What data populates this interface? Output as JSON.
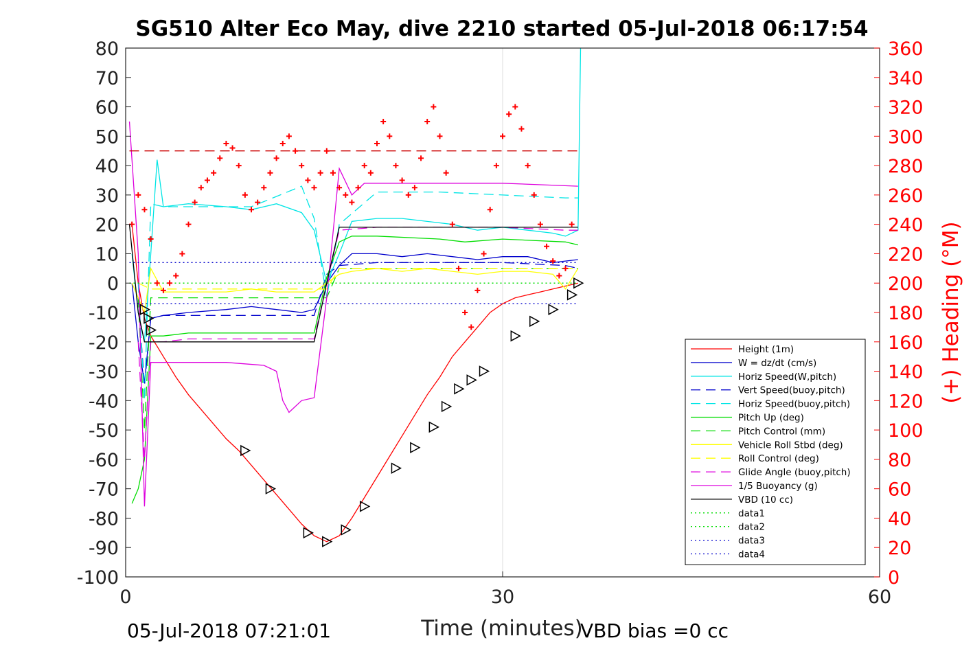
{
  "chart_data": {
    "type": "line",
    "title": "SG510 Alter Eco May, dive 2210 started 05-Jul-2018 06:17:54",
    "xlabel": "Time (minutes)",
    "ylabel": "",
    "y2label": "(+) Heading (°M)",
    "xlim": [
      0,
      60
    ],
    "ylim": [
      -100,
      80
    ],
    "y2lim": [
      0,
      360
    ],
    "xticks": [
      "0",
      "30",
      "60"
    ],
    "yticks": [
      "80",
      "70",
      "60",
      "50",
      "40",
      "30",
      "20",
      "10",
      "0",
      "-10",
      "-20",
      "-30",
      "-40",
      "-50",
      "-60",
      "-70",
      "-80",
      "-90",
      "-100"
    ],
    "y2ticks": [
      "360",
      "340",
      "320",
      "300",
      "280",
      "260",
      "240",
      "220",
      "200",
      "180",
      "160",
      "140",
      "120",
      "100",
      "80",
      "60",
      "40",
      "20",
      "0"
    ],
    "grid": "x-only at 30",
    "legend_position": "bottom-right",
    "footer_left": "05-Jul-2018 07:21:01",
    "footer_right": "VBD bias =0 cc",
    "legend": [
      {
        "label": "Height (1m)",
        "color": "#ff0000",
        "style": "solid"
      },
      {
        "label": "W = dz/dt (cm/s)",
        "color": "#0000cc",
        "style": "solid"
      },
      {
        "label": "Horiz Speed(W,pitch)",
        "color": "#00e5e5",
        "style": "solid"
      },
      {
        "label": "Vert Speed(buoy,pitch)",
        "color": "#0000cc",
        "style": "dashed"
      },
      {
        "label": "Horiz Speed(buoy,pitch)",
        "color": "#00e5e5",
        "style": "dashed"
      },
      {
        "label": "Pitch Up (deg)",
        "color": "#00dd00",
        "style": "solid"
      },
      {
        "label": "Pitch Control (mm)",
        "color": "#00dd00",
        "style": "dashed"
      },
      {
        "label": "Vehicle Roll Stbd (deg)",
        "color": "#ffff00",
        "style": "solid"
      },
      {
        "label": "Roll Control (deg)",
        "color": "#ffff00",
        "style": "dashed"
      },
      {
        "label": "Glide Angle (buoy,pitch)",
        "color": "#dd00dd",
        "style": "dashed"
      },
      {
        "label": "1/5 Buoyancy (g)",
        "color": "#dd00dd",
        "style": "solid"
      },
      {
        "label": "VBD (10 cc)",
        "color": "#000000",
        "style": "solid"
      },
      {
        "label": "data1",
        "color": "#00dd00",
        "style": "dotted"
      },
      {
        "label": "data2",
        "color": "#00dd00",
        "style": "dotted"
      },
      {
        "label": "data3",
        "color": "#0000cc",
        "style": "dotted"
      },
      {
        "label": "data4",
        "color": "#0000cc",
        "style": "dotted"
      }
    ],
    "series": [
      {
        "name": "Height (1m)",
        "axis": "left",
        "x": [
          0.5,
          1,
          1.5,
          2,
          3,
          4,
          5,
          6,
          7,
          8,
          9,
          10,
          11,
          12,
          13,
          14,
          15,
          16,
          17,
          18,
          19,
          20,
          21,
          22,
          23,
          24,
          25,
          26,
          27,
          28,
          29,
          30,
          31,
          32,
          33,
          34,
          35,
          36
        ],
        "y": [
          20,
          0,
          -12,
          -18,
          -25,
          -32,
          -38,
          -43,
          -48,
          -53,
          -57,
          -62,
          -67,
          -72,
          -77,
          -82,
          -86,
          -88,
          -86,
          -80,
          -73,
          -66,
          -59,
          -52,
          -45,
          -38,
          -32,
          -25,
          -20,
          -15,
          -10,
          -7,
          -5,
          -4,
          -3,
          -2,
          -1,
          0
        ]
      },
      {
        "name": "W = dz/dt (cm/s)",
        "axis": "left",
        "x": [
          0.5,
          1,
          1.5,
          2,
          3,
          5,
          8,
          10,
          12,
          14,
          15,
          16,
          17,
          18,
          20,
          22,
          24,
          26,
          28,
          30,
          32,
          34,
          36
        ],
        "y": [
          0,
          -20,
          -34,
          -12,
          -11,
          -10,
          -9,
          -8,
          -9,
          -10,
          -9,
          0,
          6,
          10,
          10,
          9,
          10,
          9,
          8,
          9,
          9,
          7,
          8
        ]
      },
      {
        "name": "Horiz Speed(W,pitch)",
        "axis": "left",
        "x": [
          0.5,
          1,
          1.5,
          2,
          2.5,
          3,
          5,
          8,
          10,
          12,
          14,
          15,
          16,
          17,
          18,
          20,
          22,
          24,
          26,
          28,
          30,
          32,
          34,
          35,
          36,
          36.2
        ],
        "y": [
          10,
          -10,
          -20,
          10,
          42,
          26,
          27,
          26,
          25,
          27,
          24,
          18,
          0,
          10,
          21,
          22,
          22,
          21,
          20,
          18,
          19,
          18,
          17,
          16,
          18,
          80
        ]
      },
      {
        "name": "Vert Speed(buoy,pitch)",
        "axis": "left",
        "x": [
          1,
          1.5,
          2,
          3,
          5,
          10,
          15,
          16,
          17,
          20,
          25,
          30,
          35,
          36
        ],
        "y": [
          -5,
          -35,
          -12,
          -11,
          -11,
          -11,
          -11,
          3,
          6,
          7,
          7,
          7,
          6,
          5
        ]
      },
      {
        "name": "Horiz Speed(buoy,pitch)",
        "axis": "left",
        "x": [
          1,
          1.5,
          2,
          3,
          5,
          10,
          14,
          15,
          16,
          17,
          20,
          25,
          30,
          35,
          36
        ],
        "y": [
          0,
          -40,
          27,
          26,
          26,
          26,
          33,
          22,
          -5,
          20,
          31,
          31,
          30,
          29,
          29
        ]
      },
      {
        "name": "Pitch Up (deg)",
        "axis": "left",
        "x": [
          0.5,
          1,
          1.5,
          2,
          3,
          5,
          8,
          10,
          12,
          14,
          15,
          16,
          17,
          18,
          20,
          25,
          27,
          30,
          35,
          36
        ],
        "y": [
          -75,
          -70,
          -60,
          -18,
          -18,
          -17,
          -17,
          -17,
          -17,
          -17,
          -17,
          2,
          14,
          16,
          16,
          15,
          14,
          15,
          14,
          13
        ]
      },
      {
        "name": "Pitch Control (mm)",
        "axis": "left",
        "x": [
          1,
          1.5,
          2,
          3,
          16,
          17,
          36
        ],
        "y": [
          -5,
          -50,
          -5,
          -5,
          -5,
          5,
          5
        ]
      },
      {
        "name": "Vehicle Roll Stbd (deg)",
        "axis": "left",
        "x": [
          0.5,
          1,
          1.5,
          2,
          3,
          5,
          8,
          10,
          12,
          14,
          15,
          16,
          17,
          18,
          20,
          22,
          24,
          26,
          28,
          30,
          32,
          34,
          35,
          36
        ],
        "y": [
          0,
          -5,
          -10,
          5,
          -3,
          -3,
          -3,
          -2,
          -3,
          -3,
          -3,
          0,
          3,
          4,
          5,
          4,
          5,
          4,
          3,
          4,
          4,
          3,
          -2,
          5
        ]
      },
      {
        "name": "Roll Control (deg)",
        "axis": "left",
        "x": [
          1,
          2,
          16,
          17,
          36
        ],
        "y": [
          0,
          -2,
          -2,
          5,
          5
        ]
      },
      {
        "name": "Glide Angle (buoy,pitch)",
        "axis": "left",
        "x": [
          1,
          1.5,
          2,
          3,
          5,
          10,
          15,
          16,
          17,
          20,
          25,
          30,
          35,
          36
        ],
        "y": [
          -20,
          -60,
          -20,
          -20,
          -19,
          -19,
          -19,
          0,
          18,
          19,
          19,
          19,
          18,
          18
        ]
      },
      {
        "name": "1/5 Buoyancy (g)",
        "axis": "left",
        "x": [
          0.3,
          1,
          1.5,
          2,
          3,
          5,
          8,
          11,
          12,
          12.5,
          13,
          14,
          15,
          16,
          17,
          18,
          19,
          20,
          25,
          30,
          36
        ],
        "y": [
          55,
          10,
          -76,
          -27,
          -27,
          -27,
          -27,
          -28,
          -30,
          -40,
          -44,
          -40,
          -39,
          -5,
          39,
          30,
          34,
          34,
          34,
          34,
          33
        ]
      },
      {
        "name": "VBD (10 cc)",
        "axis": "left",
        "x": [
          0.3,
          1,
          1.5,
          2,
          3,
          5,
          8,
          10,
          12,
          14,
          15,
          16,
          17,
          18,
          20,
          25,
          30,
          36
        ],
        "y": [
          20,
          -10,
          -20,
          -20,
          -20,
          -20,
          -20,
          -20,
          -20,
          -20,
          -20,
          0,
          19,
          19,
          19,
          19,
          19,
          19
        ]
      },
      {
        "name": "data1",
        "axis": "left",
        "x": [
          0.3,
          36
        ],
        "y": [
          0,
          0
        ]
      },
      {
        "name": "data2",
        "axis": "left",
        "x": [
          0.3,
          36
        ],
        "y": [
          0,
          0
        ]
      },
      {
        "name": "data3",
        "axis": "left",
        "x": [
          0.3,
          36
        ],
        "y": [
          7,
          7
        ]
      },
      {
        "name": "data4",
        "axis": "left",
        "x": [
          0.3,
          36
        ],
        "y": [
          -7,
          -7
        ]
      },
      {
        "name": "Heading target",
        "axis": "right",
        "x": [
          0.3,
          36
        ],
        "y": [
          290,
          290
        ]
      }
    ],
    "heading_points": {
      "axis": "right",
      "x": [
        0.5,
        1,
        1.5,
        2,
        2.5,
        3,
        3.5,
        4,
        4.5,
        5,
        5.5,
        6,
        6.5,
        7,
        7.5,
        8,
        8.5,
        9,
        9.5,
        10,
        10.5,
        11,
        11.5,
        12,
        12.5,
        13,
        13.5,
        14,
        14.5,
        15,
        15.5,
        16,
        16.5,
        17,
        17.5,
        18,
        18.5,
        19,
        19.5,
        20,
        20.5,
        21,
        21.5,
        22,
        22.5,
        23,
        23.5,
        24,
        24.5,
        25,
        25.5,
        26,
        26.5,
        27,
        27.5,
        28,
        28.5,
        29,
        29.5,
        30,
        30.5,
        31,
        31.5,
        32,
        32.5,
        33,
        33.5,
        34,
        34.5,
        35,
        35.5
      ],
      "y": [
        240,
        260,
        250,
        230,
        200,
        195,
        200,
        205,
        220,
        240,
        255,
        265,
        270,
        275,
        285,
        295,
        292,
        280,
        260,
        250,
        255,
        265,
        275,
        285,
        295,
        300,
        290,
        280,
        270,
        265,
        275,
        290,
        275,
        265,
        260,
        255,
        265,
        280,
        275,
        295,
        310,
        300,
        280,
        270,
        260,
        265,
        285,
        310,
        320,
        300,
        275,
        240,
        210,
        180,
        170,
        195,
        220,
        250,
        280,
        300,
        315,
        320,
        305,
        280,
        260,
        240,
        225,
        215,
        205,
        210,
        240
      ]
    },
    "depth_markers": {
      "axis": "left",
      "x": [
        1.5,
        1.8,
        2,
        9.5,
        11.5,
        14.5,
        16,
        17.5,
        19,
        21.5,
        23,
        24.5,
        25.5,
        26.5,
        27.5,
        28.5,
        31,
        32.5,
        34,
        35.5,
        36
      ],
      "y": [
        -9,
        -12,
        -16,
        -57,
        -70,
        -85,
        -88,
        -84,
        -76,
        -63,
        -56,
        -49,
        -42,
        -36,
        -33,
        -30,
        -18,
        -13,
        -9,
        -4,
        0
      ]
    }
  }
}
